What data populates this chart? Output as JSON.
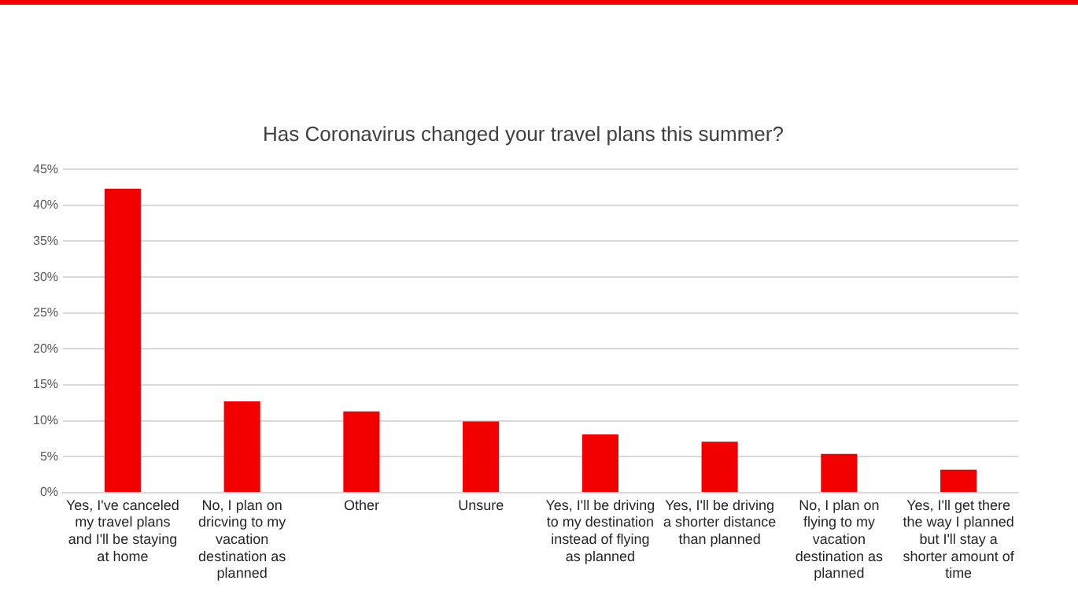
{
  "chart_data": {
    "type": "bar",
    "title": "Has Coronavirus changed your travel plans this summer?",
    "categories": [
      "Yes, I've canceled my travel plans and I'll be staying at home",
      "No, I plan on dricving to my vacation destination as planned",
      "Other",
      "Unsure",
      "Yes, I'll be driving to my destination instead of flying as planned",
      "Yes, I'll be driving a shorter distance than planned",
      "No, I plan on flying to my vacation destination as planned",
      "Yes, I'll get there the way I planned but I'll stay a shorter amount of time"
    ],
    "values": [
      42.3,
      12.7,
      11.3,
      9.9,
      8.1,
      7.1,
      5.4,
      3.2
    ],
    "color": "#f20000",
    "ylim": [
      0,
      45
    ],
    "yticks": [
      {
        "value": 0,
        "label": "0%"
      },
      {
        "value": 5,
        "label": "5%"
      },
      {
        "value": 10,
        "label": "10%"
      },
      {
        "value": 15,
        "label": "15%"
      },
      {
        "value": 20,
        "label": "20%"
      },
      {
        "value": 25,
        "label": "25%"
      },
      {
        "value": 30,
        "label": "30%"
      },
      {
        "value": 35,
        "label": "35%"
      },
      {
        "value": 40,
        "label": "40%"
      },
      {
        "value": 45,
        "label": "45%"
      }
    ],
    "grid": "y",
    "legend": false
  }
}
